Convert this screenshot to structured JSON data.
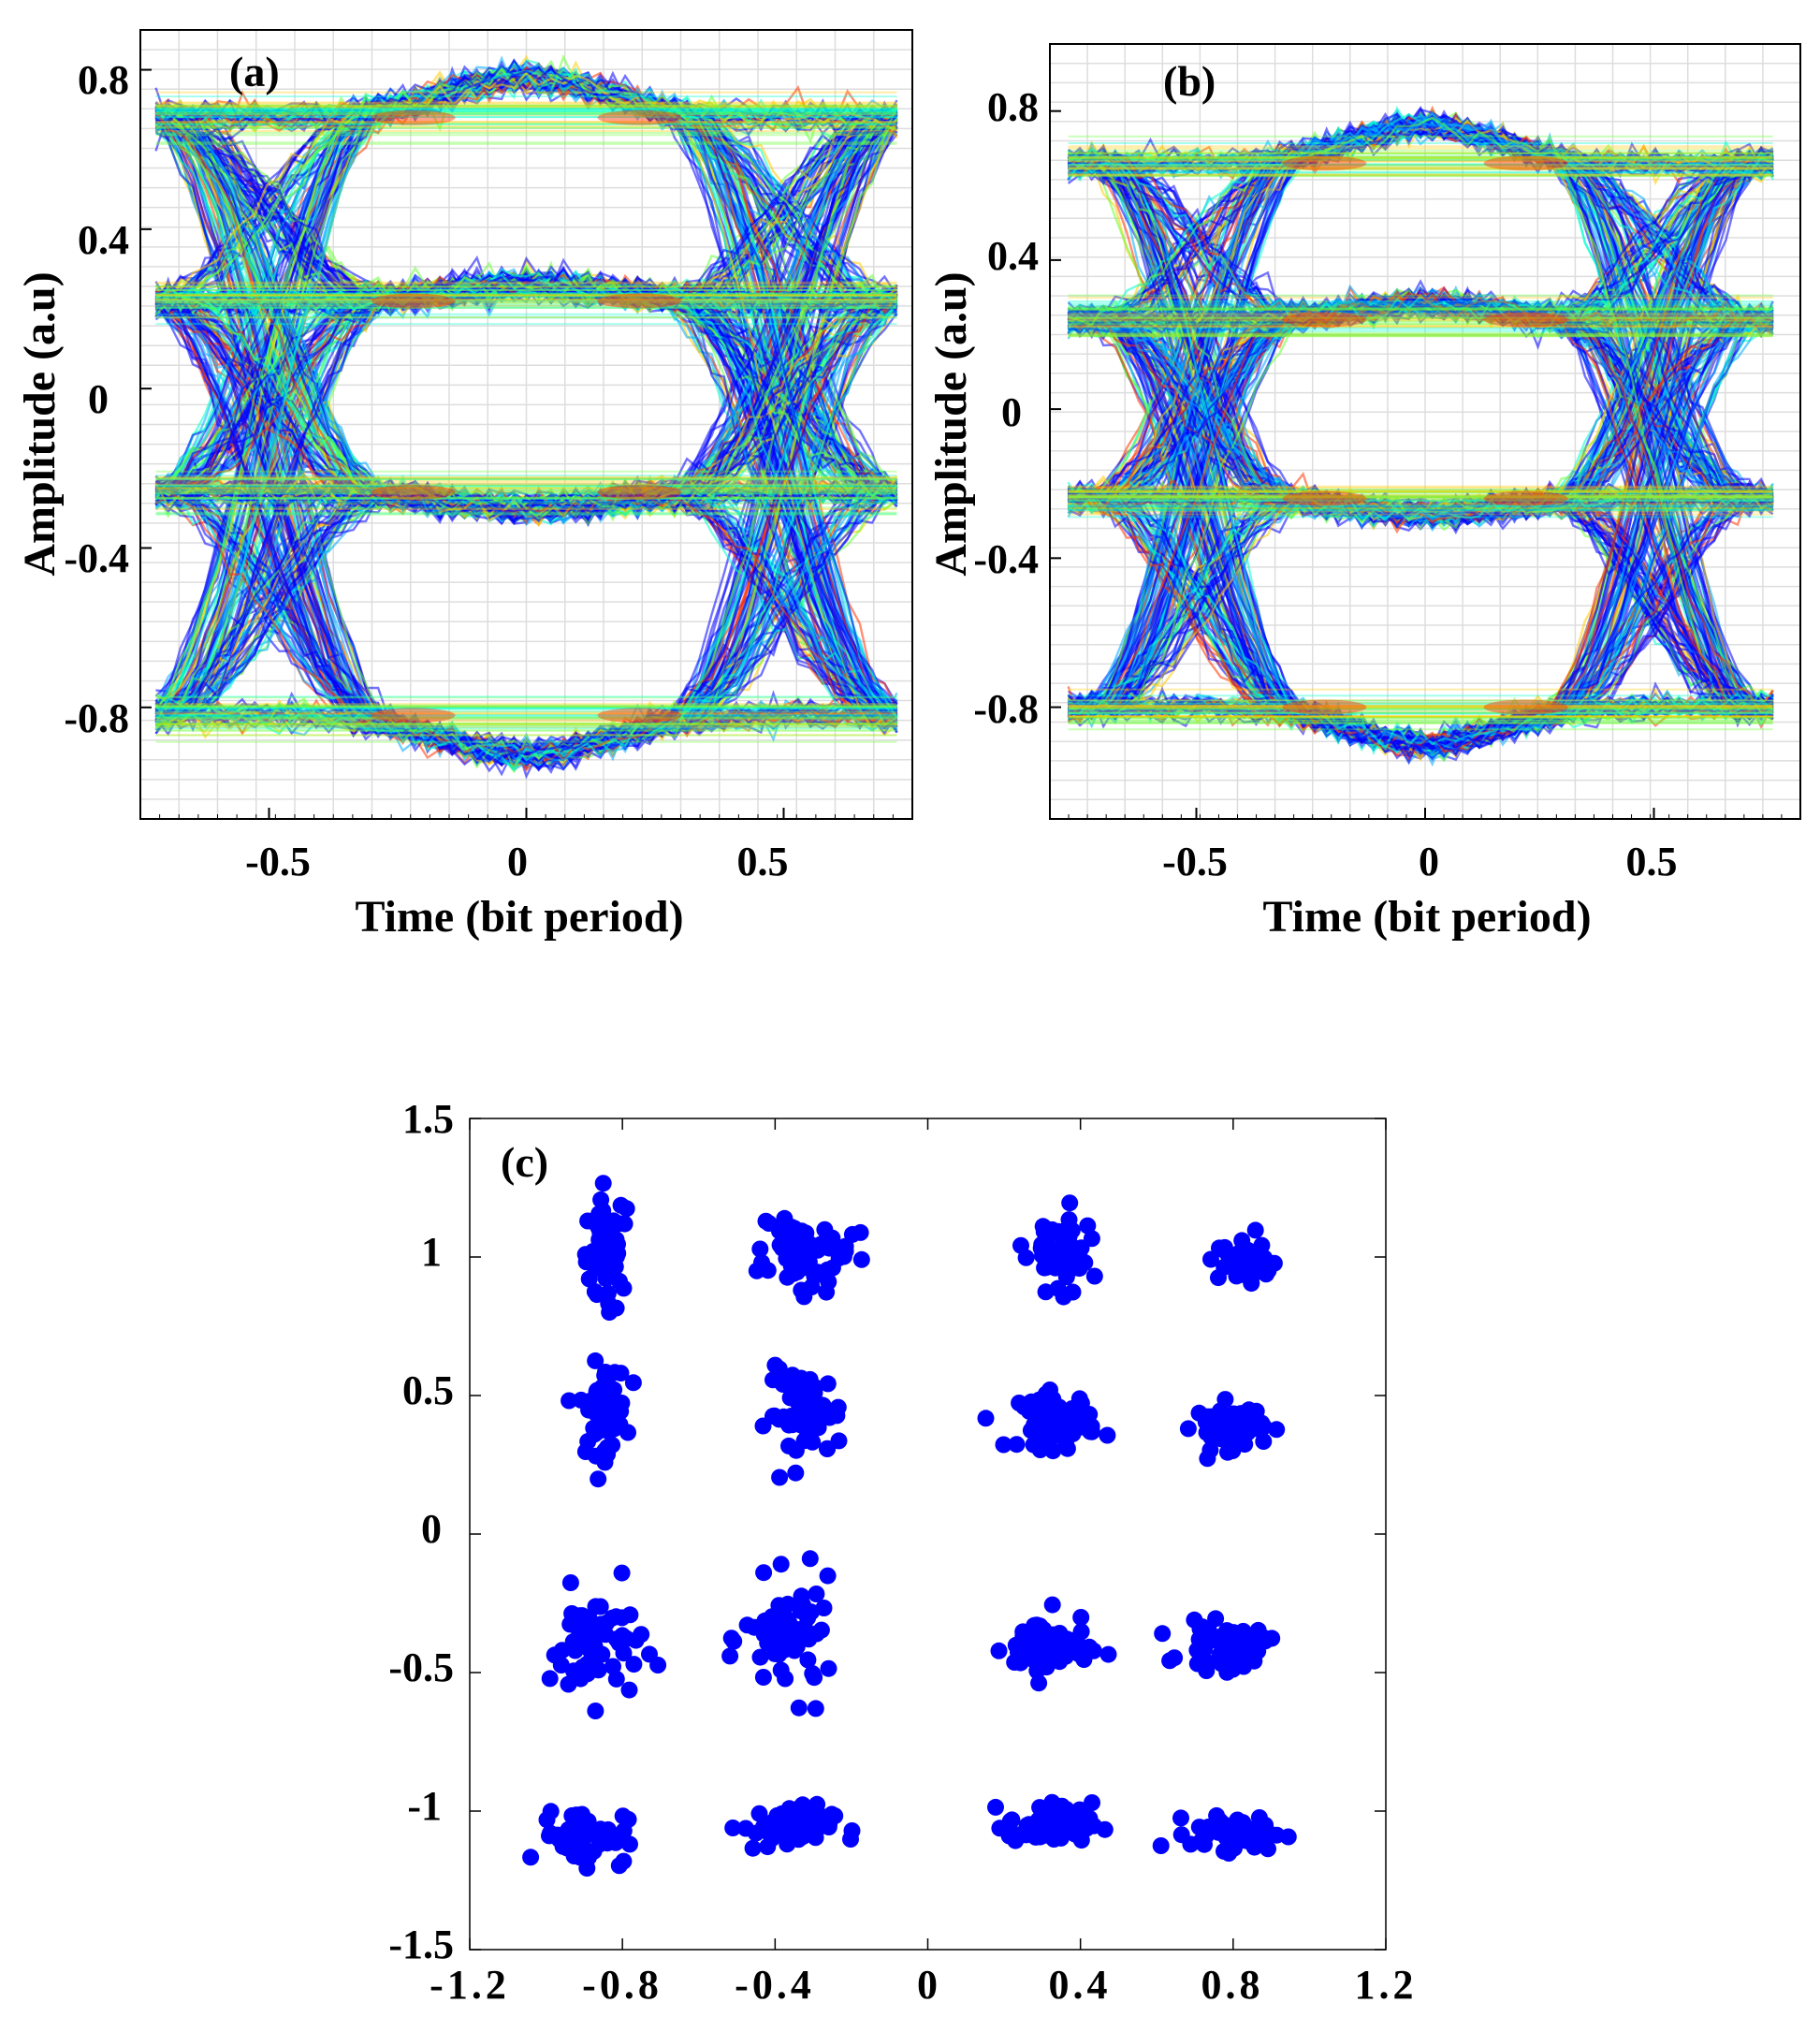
{
  "chart_data": [
    {
      "panel": "(a)",
      "type": "heatmap",
      "description_type": "eye-diagram",
      "xlabel": "Time (bit period)",
      "ylabel": "Amplitude (a.u)",
      "xlim": [
        -0.75,
        0.75
      ],
      "ylim": [
        -1.08,
        0.9
      ],
      "xticks": [
        -0.5,
        0,
        0.5
      ],
      "xtick_labels": [
        "-0.5",
        "0",
        "0.5"
      ],
      "yticks": [
        -0.8,
        -0.4,
        0,
        0.4,
        0.8
      ],
      "ytick_labels": [
        "-0.8",
        "-0.4",
        "0",
        "0.4",
        "0.8"
      ],
      "grid": true,
      "levels": [
        0.68,
        0.22,
        -0.26,
        -0.82
      ],
      "level_spread": 0.05,
      "eye_openings": [
        {
          "top": 0.55,
          "bottom": 0.34
        },
        {
          "top": 0.12,
          "bottom": -0.09
        },
        {
          "top": -0.4,
          "bottom": -0.68
        }
      ],
      "trace_extent": [
        -0.92,
        0.82
      ],
      "data_span": [
        -0.72,
        0.72
      ],
      "colors": [
        "#0000ff",
        "#00aaff",
        "#00ffcc",
        "#66ff33",
        "#ffcc00",
        "#ff3300"
      ]
    },
    {
      "panel": "(b)",
      "type": "heatmap",
      "description_type": "eye-diagram",
      "xlabel": "Time (bit period)",
      "ylabel": "Amplitude (a.u)",
      "xlim": [
        -0.82,
        0.82
      ],
      "ylim": [
        -1.1,
        0.98
      ],
      "xticks": [
        -0.5,
        0,
        0.5
      ],
      "xtick_labels": [
        "-0.5",
        "0",
        "0.5"
      ],
      "yticks": [
        -0.8,
        -0.4,
        0,
        0.4,
        0.8
      ],
      "ytick_labels": [
        "-0.8",
        "-0.4",
        "0",
        "0.4",
        "0.8"
      ],
      "grid": true,
      "levels": [
        0.66,
        0.24,
        -0.24,
        -0.8
      ],
      "level_spread": 0.05,
      "eye_openings": [
        {
          "top": 0.56,
          "bottom": 0.4
        },
        {
          "top": 0.1,
          "bottom": -0.1
        },
        {
          "top": -0.42,
          "bottom": -0.66
        }
      ],
      "trace_extent": [
        -0.9,
        0.86
      ],
      "data_span": [
        -0.78,
        0.76
      ],
      "colors": [
        "#0000ff",
        "#00aaff",
        "#00ffcc",
        "#66ff33",
        "#ffcc00",
        "#ff3300"
      ]
    },
    {
      "panel": "(c)",
      "type": "scatter",
      "description_type": "16-QAM constellation",
      "xlim": [
        -1.2,
        1.2
      ],
      "ylim": [
        -1.5,
        1.5
      ],
      "xticks": [
        -1.2,
        -0.8,
        -0.4,
        0,
        0.4,
        0.8,
        1.2
      ],
      "xtick_labels": [
        "-1.2",
        "-0.8",
        "-0.4",
        "0",
        "0.4",
        "0.8",
        "1.2"
      ],
      "yticks": [
        -1.5,
        -1,
        -0.5,
        0,
        0.5,
        1,
        1.5
      ],
      "ytick_labels": [
        "-1.5",
        "-1",
        "-0.5",
        "0",
        "0.5",
        "1",
        "1.5"
      ],
      "grid": false,
      "marker_color": "#0000ff",
      "points_per_cluster": 60,
      "clusters": [
        {
          "x": -0.84,
          "y": 1.04,
          "sx": 0.025,
          "sy": 0.09
        },
        {
          "x": -0.32,
          "y": 1.02,
          "sx": 0.06,
          "sy": 0.07
        },
        {
          "x": 0.36,
          "y": 1.02,
          "sx": 0.035,
          "sy": 0.07
        },
        {
          "x": 0.83,
          "y": 0.99,
          "sx": 0.035,
          "sy": 0.035
        },
        {
          "x": -0.85,
          "y": 0.45,
          "sx": 0.03,
          "sy": 0.08
        },
        {
          "x": -0.32,
          "y": 0.43,
          "sx": 0.05,
          "sy": 0.08
        },
        {
          "x": 0.34,
          "y": 0.41,
          "sx": 0.05,
          "sy": 0.05
        },
        {
          "x": 0.79,
          "y": 0.39,
          "sx": 0.045,
          "sy": 0.04
        },
        {
          "x": -0.87,
          "y": -0.4,
          "sx": 0.06,
          "sy": 0.1
        },
        {
          "x": -0.36,
          "y": -0.38,
          "sx": 0.06,
          "sy": 0.1
        },
        {
          "x": 0.31,
          "y": -0.41,
          "sx": 0.055,
          "sy": 0.06
        },
        {
          "x": 0.78,
          "y": -0.41,
          "sx": 0.055,
          "sy": 0.04
        },
        {
          "x": -0.9,
          "y": -1.09,
          "sx": 0.055,
          "sy": 0.05
        },
        {
          "x": -0.37,
          "y": -1.06,
          "sx": 0.06,
          "sy": 0.04
        },
        {
          "x": 0.32,
          "y": -1.05,
          "sx": 0.055,
          "sy": 0.04
        },
        {
          "x": 0.81,
          "y": -1.08,
          "sx": 0.06,
          "sy": 0.03
        }
      ]
    }
  ]
}
